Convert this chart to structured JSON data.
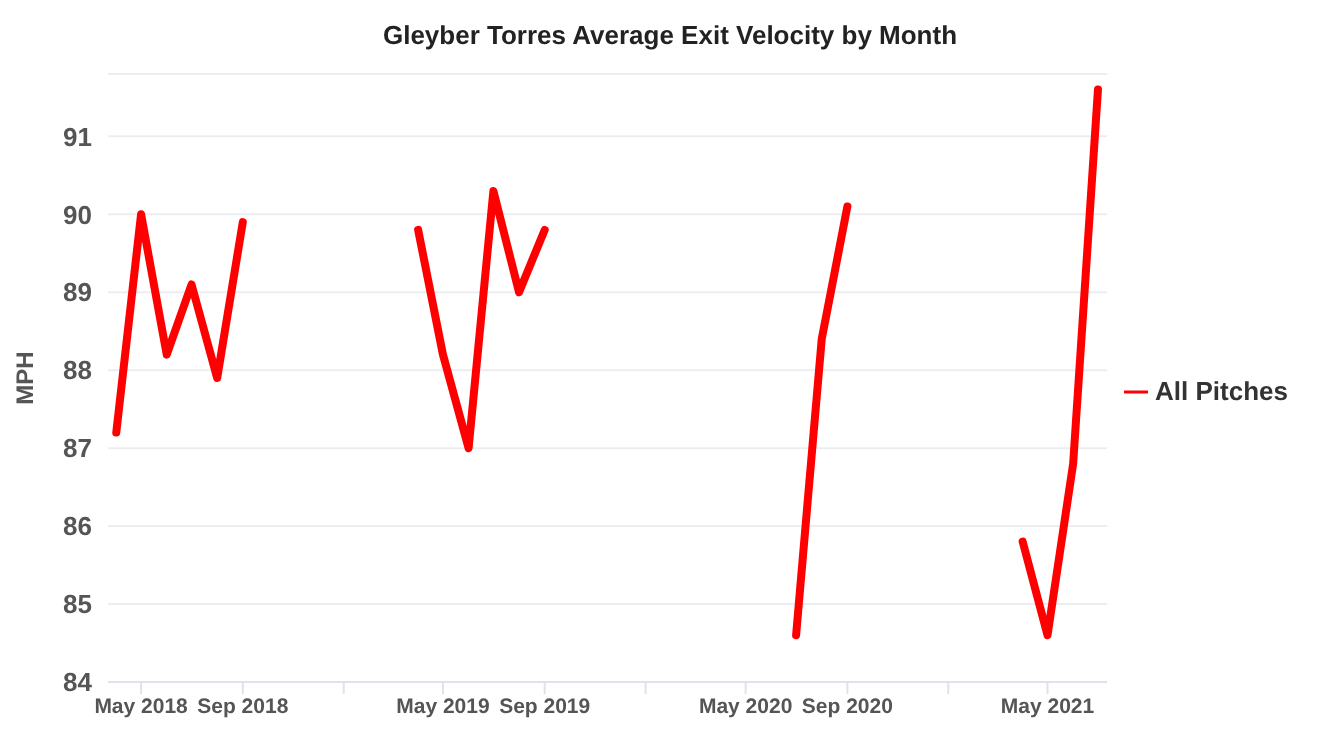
{
  "chart_data": {
    "type": "line",
    "title": "Gleyber Torres Average Exit Velocity by Month",
    "ylabel": "MPH",
    "x": [
      "2018-04",
      "2018-05",
      "2018-06",
      "2018-07",
      "2018-08",
      "2018-09",
      "2018-12",
      "2019-04",
      "2019-05",
      "2019-06",
      "2019-07",
      "2019-08",
      "2019-09",
      "2019-12",
      "2020-07",
      "2020-08",
      "2020-09",
      "2020-12",
      "2021-04",
      "2021-05",
      "2021-06",
      "2021-07"
    ],
    "series": [
      {
        "name": "All Pitches",
        "color": "#ff0000",
        "values": [
          87.2,
          90.0,
          88.2,
          89.1,
          87.9,
          89.9,
          null,
          89.8,
          88.2,
          87.0,
          90.3,
          89.0,
          89.8,
          null,
          84.6,
          88.4,
          90.1,
          null,
          85.8,
          84.6,
          86.8,
          91.6
        ]
      }
    ],
    "xlim": [
      "2018-03-22",
      "2021-07-12"
    ],
    "xticks": [
      {
        "value": "2018-05",
        "label": "May 2018"
      },
      {
        "value": "2018-09",
        "label": "Sep 2018"
      },
      {
        "value": "2019-01",
        "label": null
      },
      {
        "value": "2019-05",
        "label": "May 2019"
      },
      {
        "value": "2019-09",
        "label": "Sep 2019"
      },
      {
        "value": "2020-01",
        "label": null
      },
      {
        "value": "2020-05",
        "label": "May 2020"
      },
      {
        "value": "2020-09",
        "label": "Sep 2020"
      },
      {
        "value": "2021-01",
        "label": null
      },
      {
        "value": "2021-05",
        "label": "May 2021"
      }
    ],
    "ylim": [
      84,
      91.8
    ],
    "yticks": [
      84,
      85,
      86,
      87,
      88,
      89,
      90,
      91
    ],
    "grid": "y",
    "legend": "right",
    "marker": "none",
    "line_style": "solid"
  }
}
